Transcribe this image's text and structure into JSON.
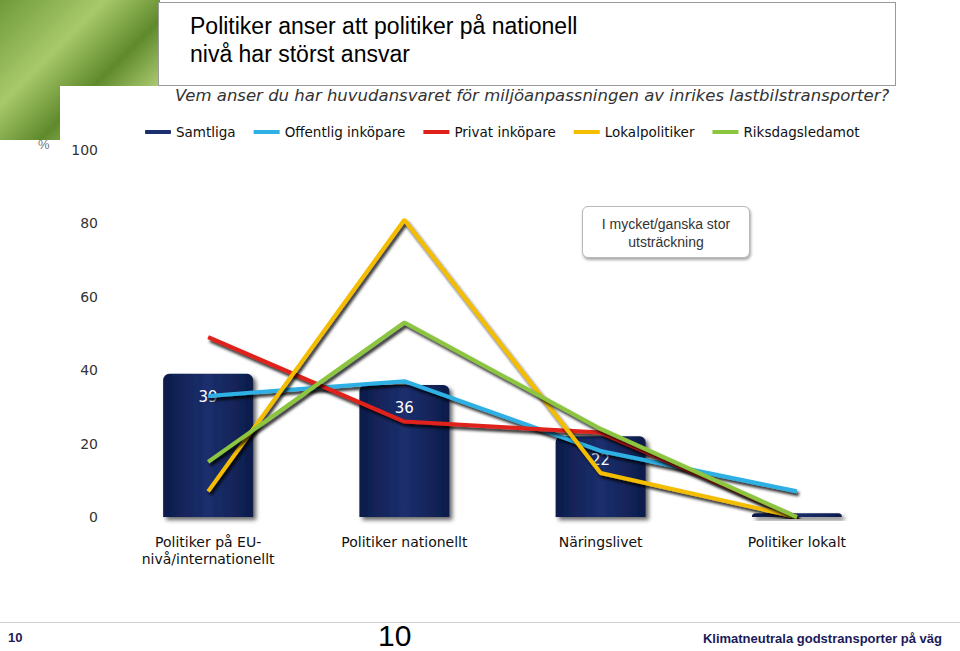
{
  "chart_data": {
    "type": "bar",
    "title": "Politiker anser att politiker på nationell nivå har störst ansvar",
    "subtitle": "Vem anser du har huvudansvaret för miljöanpassningen av inrikes lastbilstransporter?",
    "annotation": "I mycket/ganska stor utsträckning",
    "y_label": "%",
    "footer": {
      "page_number": "10",
      "text": "Klimatneutrala godstransporter på väg"
    },
    "categories": [
      "Politiker på EU-nivå/internationellt",
      "Politiker nationellt",
      "Näringslivet",
      "Politiker lokalt"
    ],
    "series": [
      {
        "name": "Samtliga",
        "type": "bar",
        "color": "#1b2f6e",
        "values": [
          39,
          36,
          22,
          1
        ],
        "value_labels": [
          "39",
          "36",
          "22",
          null
        ]
      },
      {
        "name": "Offentlig inköpare",
        "type": "line",
        "color": "#2eb0e4",
        "marker": "none",
        "values": [
          33,
          37,
          18,
          7
        ]
      },
      {
        "name": "Privat inköpare",
        "type": "line",
        "color": "#e0201a",
        "marker": "none",
        "values": [
          49,
          26,
          23,
          0
        ]
      },
      {
        "name": "Lokalpolitiker",
        "type": "line",
        "color": "#f5bd00",
        "marker": "none",
        "values": [
          7,
          81,
          12,
          0
        ]
      },
      {
        "name": "Riksdagsledamot",
        "type": "line",
        "color": "#8cc63f",
        "marker": "none",
        "values": [
          15,
          53,
          24,
          0
        ]
      }
    ],
    "ylim": [
      0,
      100
    ],
    "yticks": [
      0,
      20,
      40,
      60,
      80,
      100
    ],
    "grid": false,
    "data_labels": true,
    "legend": "top"
  }
}
